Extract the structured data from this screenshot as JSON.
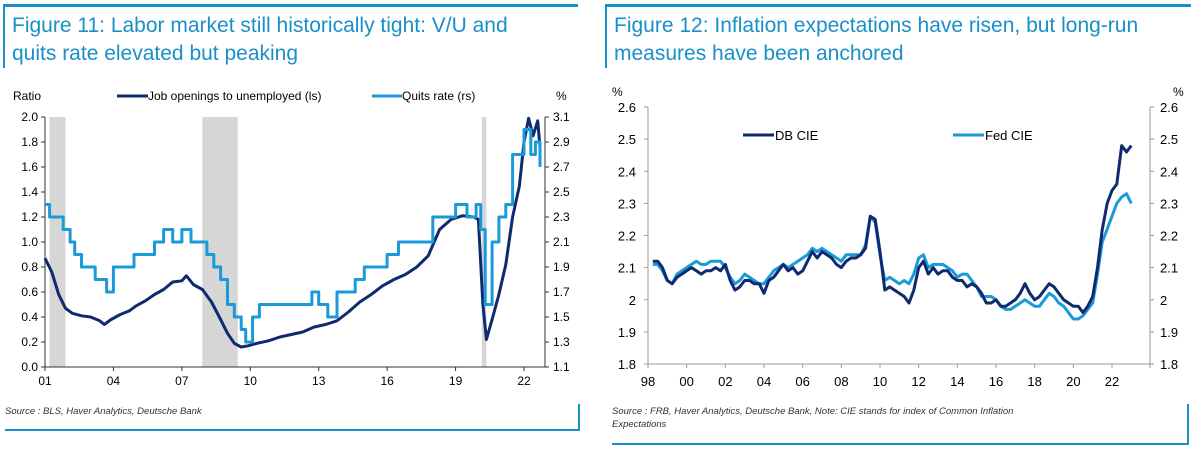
{
  "figures": [
    {
      "title_line1": "Figure 11: Labor market still historically tight: V/U and",
      "title_line2": "quits rate elevated but peaking",
      "source": "Source : BLS, Haver Analytics, Deutsche Bank"
    },
    {
      "title_line1": "Figure 12: Inflation expectations have risen, but long-run",
      "title_line2": "measures have been anchored",
      "source_line1": "Source : FRB, Haver Analytics, Deutsche Bank, Note: CIE stands for index of Common Inflation",
      "source_line2": "Expectations"
    }
  ],
  "chart_data": [
    {
      "type": "line",
      "title": "Figure 11: Labor market still historically tight: V/U and quits rate elevated but peaking",
      "ylabel": "Ratio",
      "ylabel_right": "%",
      "ylim": [
        0.0,
        2.0
      ],
      "ylim_right": [
        1.1,
        3.1
      ],
      "yticks": [
        "0.0",
        "0.2",
        "0.4",
        "0.6",
        "0.8",
        "1.0",
        "1.2",
        "1.4",
        "1.6",
        "1.8",
        "2.0"
      ],
      "yticks_right": [
        "1.1",
        "1.3",
        "1.5",
        "1.7",
        "1.9",
        "2.1",
        "2.3",
        "2.5",
        "2.7",
        "2.9",
        "3.1"
      ],
      "xlim": [
        2001.0,
        2023.5
      ],
      "xticks": [
        {
          "v": 2001,
          "label": "01"
        },
        {
          "v": 2004,
          "label": "04"
        },
        {
          "v": 2007,
          "label": "07"
        },
        {
          "v": 2010,
          "label": "10"
        },
        {
          "v": 2013,
          "label": "13"
        },
        {
          "v": 2016,
          "label": "16"
        },
        {
          "v": 2019,
          "label": "19"
        },
        {
          "v": 2022,
          "label": "22"
        }
      ],
      "recessions": [
        [
          2001.2,
          2001.9
        ],
        [
          2007.9,
          2009.45
        ],
        [
          2020.15,
          2020.35
        ]
      ],
      "legend": [
        "Job openings to unemployed (ls)",
        "Quits rate (rs)"
      ],
      "legend_position": "top",
      "series": [
        {
          "name": "Job openings to unemployed (ls)",
          "axis": "left",
          "color": "#0f2a6e",
          "x": [
            2001.0,
            2001.3,
            2001.6,
            2001.9,
            2002.2,
            2002.6,
            2003.0,
            2003.4,
            2003.6,
            2003.9,
            2004.3,
            2004.7,
            2005.0,
            2005.4,
            2005.8,
            2006.2,
            2006.6,
            2007.0,
            2007.2,
            2007.5,
            2007.9,
            2008.3,
            2008.7,
            2009.0,
            2009.3,
            2009.6,
            2009.9,
            2010.3,
            2010.8,
            2011.3,
            2011.8,
            2012.3,
            2012.8,
            2013.3,
            2013.8,
            2014.3,
            2014.8,
            2015.3,
            2015.8,
            2016.3,
            2016.8,
            2017.3,
            2017.8,
            2018.3,
            2018.8,
            2019.3,
            2019.8,
            2020.0,
            2020.2,
            2020.35,
            2020.6,
            2020.9,
            2021.2,
            2021.5,
            2021.8,
            2022.0,
            2022.2,
            2022.4,
            2022.6,
            2022.7
          ],
          "values": [
            0.87,
            0.76,
            0.58,
            0.47,
            0.43,
            0.41,
            0.4,
            0.37,
            0.34,
            0.38,
            0.42,
            0.45,
            0.49,
            0.53,
            0.58,
            0.62,
            0.68,
            0.69,
            0.73,
            0.66,
            0.62,
            0.52,
            0.38,
            0.27,
            0.19,
            0.16,
            0.17,
            0.19,
            0.21,
            0.24,
            0.26,
            0.28,
            0.32,
            0.34,
            0.37,
            0.44,
            0.52,
            0.58,
            0.65,
            0.7,
            0.74,
            0.8,
            0.89,
            1.1,
            1.18,
            1.21,
            1.2,
            1.18,
            0.5,
            0.22,
            0.38,
            0.58,
            0.82,
            1.2,
            1.45,
            1.8,
            1.99,
            1.85,
            1.97,
            1.76
          ]
        },
        {
          "name": "Quits rate (rs)",
          "axis": "right",
          "color": "#1a9ad8",
          "x": [
            2001.0,
            2001.2,
            2001.5,
            2001.8,
            2002.1,
            2002.3,
            2002.6,
            2002.9,
            2003.2,
            2003.5,
            2003.7,
            2004.0,
            2004.3,
            2004.6,
            2004.9,
            2005.1,
            2005.4,
            2005.8,
            2006.2,
            2006.6,
            2007.0,
            2007.4,
            2007.8,
            2008.1,
            2008.4,
            2008.7,
            2009.0,
            2009.3,
            2009.6,
            2009.8,
            2010.1,
            2010.4,
            2010.8,
            2011.2,
            2011.6,
            2012.0,
            2012.4,
            2012.7,
            2013.0,
            2013.4,
            2013.8,
            2014.2,
            2014.6,
            2015.0,
            2015.5,
            2016.0,
            2016.5,
            2017.0,
            2017.5,
            2018.0,
            2018.5,
            2019.0,
            2019.5,
            2019.9,
            2020.1,
            2020.3,
            2020.6,
            2020.9,
            2021.2,
            2021.5,
            2021.8,
            2022.0,
            2022.3,
            2022.5,
            2022.7
          ],
          "values": [
            2.4,
            2.3,
            2.3,
            2.2,
            2.1,
            2.0,
            1.9,
            1.9,
            1.8,
            1.8,
            1.7,
            1.9,
            1.9,
            1.9,
            2.0,
            2.0,
            2.0,
            2.1,
            2.2,
            2.1,
            2.2,
            2.1,
            2.1,
            2.0,
            1.9,
            1.8,
            1.6,
            1.5,
            1.4,
            1.3,
            1.5,
            1.6,
            1.6,
            1.6,
            1.6,
            1.6,
            1.6,
            1.7,
            1.6,
            1.5,
            1.7,
            1.7,
            1.8,
            1.9,
            1.9,
            2.0,
            2.1,
            2.1,
            2.1,
            2.3,
            2.3,
            2.4,
            2.3,
            2.4,
            2.2,
            1.6,
            2.1,
            2.3,
            2.4,
            2.8,
            2.8,
            3.0,
            2.8,
            2.9,
            2.7
          ]
        }
      ]
    },
    {
      "type": "line",
      "title": "Figure 12: Inflation expectations have risen, but long-run measures have been anchored",
      "ylabel": "%",
      "ylabel_right": "%",
      "ylim": [
        1.8,
        2.6
      ],
      "yticks": [
        "1.8",
        "1.9",
        "2",
        "2.1",
        "2.2",
        "2.3",
        "2.4",
        "2.5",
        "2.6"
      ],
      "xlim": [
        1998.0,
        2024.0
      ],
      "xticks": [
        {
          "v": 1998,
          "label": "98"
        },
        {
          "v": 2000,
          "label": "00"
        },
        {
          "v": 2002,
          "label": "02"
        },
        {
          "v": 2004,
          "label": "04"
        },
        {
          "v": 2006,
          "label": "06"
        },
        {
          "v": 2008,
          "label": "08"
        },
        {
          "v": 2010,
          "label": "10"
        },
        {
          "v": 2012,
          "label": "12"
        },
        {
          "v": 2014,
          "label": "14"
        },
        {
          "v": 2016,
          "label": "16"
        },
        {
          "v": 2018,
          "label": "18"
        },
        {
          "v": 2020,
          "label": "20"
        },
        {
          "v": 2022,
          "label": "22"
        }
      ],
      "legend": [
        "DB CIE",
        "Fed CIE"
      ],
      "legend_position": "top",
      "series": [
        {
          "name": "DB CIE",
          "color": "#0f2a6e",
          "x": [
            1998.25,
            1998.5,
            1998.75,
            1999.0,
            1999.25,
            1999.5,
            1999.75,
            2000.0,
            2000.25,
            2000.5,
            2000.75,
            2001.0,
            2001.25,
            2001.5,
            2001.75,
            2002.0,
            2002.25,
            2002.5,
            2002.75,
            2003.0,
            2003.25,
            2003.5,
            2003.75,
            2004.0,
            2004.25,
            2004.5,
            2004.75,
            2005.0,
            2005.25,
            2005.5,
            2005.75,
            2006.0,
            2006.25,
            2006.5,
            2006.75,
            2007.0,
            2007.25,
            2007.5,
            2007.75,
            2008.0,
            2008.25,
            2008.5,
            2008.75,
            2009.0,
            2009.25,
            2009.5,
            2009.75,
            2010.0,
            2010.25,
            2010.5,
            2010.75,
            2011.0,
            2011.25,
            2011.5,
            2011.75,
            2012.0,
            2012.25,
            2012.5,
            2012.75,
            2013.0,
            2013.25,
            2013.5,
            2013.75,
            2014.0,
            2014.25,
            2014.5,
            2014.75,
            2015.0,
            2015.25,
            2015.5,
            2015.75,
            2016.0,
            2016.25,
            2016.5,
            2016.75,
            2017.0,
            2017.25,
            2017.5,
            2017.75,
            2018.0,
            2018.25,
            2018.5,
            2018.75,
            2019.0,
            2019.25,
            2019.5,
            2019.75,
            2020.0,
            2020.25,
            2020.5,
            2020.75,
            2021.0,
            2021.25,
            2021.5,
            2021.75,
            2022.0,
            2022.25,
            2022.5,
            2022.75,
            2023.0
          ],
          "values": [
            2.12,
            2.12,
            2.1,
            2.06,
            2.05,
            2.07,
            2.08,
            2.09,
            2.1,
            2.09,
            2.08,
            2.09,
            2.09,
            2.1,
            2.09,
            2.11,
            2.06,
            2.03,
            2.04,
            2.06,
            2.06,
            2.05,
            2.05,
            2.02,
            2.06,
            2.07,
            2.09,
            2.11,
            2.09,
            2.1,
            2.08,
            2.09,
            2.12,
            2.15,
            2.13,
            2.15,
            2.14,
            2.13,
            2.11,
            2.1,
            2.12,
            2.13,
            2.13,
            2.14,
            2.16,
            2.26,
            2.25,
            2.15,
            2.03,
            2.04,
            2.03,
            2.02,
            2.01,
            1.99,
            2.03,
            2.1,
            2.12,
            2.08,
            2.1,
            2.08,
            2.09,
            2.09,
            2.07,
            2.06,
            2.06,
            2.04,
            2.05,
            2.04,
            2.02,
            1.99,
            1.99,
            2.0,
            1.98,
            1.98,
            1.99,
            2.0,
            2.02,
            2.05,
            2.02,
            2.0,
            2.01,
            2.03,
            2.05,
            2.04,
            2.02,
            2.0,
            1.99,
            1.98,
            1.98,
            1.96,
            1.98,
            2.01,
            2.1,
            2.22,
            2.3,
            2.34,
            2.36,
            2.48,
            2.46,
            2.48
          ]
        },
        {
          "name": "Fed CIE",
          "color": "#1a9ad8",
          "x": [
            1998.25,
            1998.5,
            1998.75,
            1999.0,
            1999.25,
            1999.5,
            1999.75,
            2000.0,
            2000.25,
            2000.5,
            2000.75,
            2001.0,
            2001.25,
            2001.5,
            2001.75,
            2002.0,
            2002.25,
            2002.5,
            2002.75,
            2003.0,
            2003.25,
            2003.5,
            2003.75,
            2004.0,
            2004.25,
            2004.5,
            2004.75,
            2005.0,
            2005.25,
            2005.5,
            2005.75,
            2006.0,
            2006.25,
            2006.5,
            2006.75,
            2007.0,
            2007.25,
            2007.5,
            2007.75,
            2008.0,
            2008.25,
            2008.5,
            2008.75,
            2009.0,
            2009.25,
            2009.5,
            2009.75,
            2010.0,
            2010.25,
            2010.5,
            2010.75,
            2011.0,
            2011.25,
            2011.5,
            2011.75,
            2012.0,
            2012.25,
            2012.5,
            2012.75,
            2013.0,
            2013.25,
            2013.5,
            2013.75,
            2014.0,
            2014.25,
            2014.5,
            2014.75,
            2015.0,
            2015.25,
            2015.5,
            2015.75,
            2016.0,
            2016.25,
            2016.5,
            2016.75,
            2017.0,
            2017.25,
            2017.5,
            2017.75,
            2018.0,
            2018.25,
            2018.5,
            2018.75,
            2019.0,
            2019.25,
            2019.5,
            2019.75,
            2020.0,
            2020.25,
            2020.5,
            2020.75,
            2021.0,
            2021.25,
            2021.5,
            2021.75,
            2022.0,
            2022.25,
            2022.5,
            2022.75,
            2023.0
          ],
          "values": [
            2.11,
            2.11,
            2.09,
            2.06,
            2.05,
            2.08,
            2.09,
            2.1,
            2.11,
            2.12,
            2.11,
            2.11,
            2.12,
            2.12,
            2.12,
            2.1,
            2.07,
            2.05,
            2.06,
            2.08,
            2.07,
            2.06,
            2.05,
            2.05,
            2.07,
            2.09,
            2.1,
            2.11,
            2.1,
            2.11,
            2.12,
            2.13,
            2.14,
            2.16,
            2.15,
            2.16,
            2.15,
            2.14,
            2.13,
            2.12,
            2.14,
            2.14,
            2.14,
            2.14,
            2.17,
            2.26,
            2.24,
            2.14,
            2.06,
            2.07,
            2.06,
            2.05,
            2.06,
            2.05,
            2.08,
            2.13,
            2.14,
            2.1,
            2.11,
            2.11,
            2.11,
            2.1,
            2.09,
            2.07,
            2.08,
            2.08,
            2.06,
            2.04,
            2.01,
            2.01,
            2.01,
            2.0,
            1.98,
            1.97,
            1.97,
            1.98,
            1.99,
            2.0,
            1.99,
            1.98,
            1.98,
            2.0,
            2.02,
            2.01,
            1.99,
            1.98,
            1.96,
            1.94,
            1.94,
            1.95,
            1.97,
            1.99,
            2.08,
            2.18,
            2.22,
            2.26,
            2.3,
            2.32,
            2.33,
            2.3
          ]
        }
      ]
    }
  ]
}
